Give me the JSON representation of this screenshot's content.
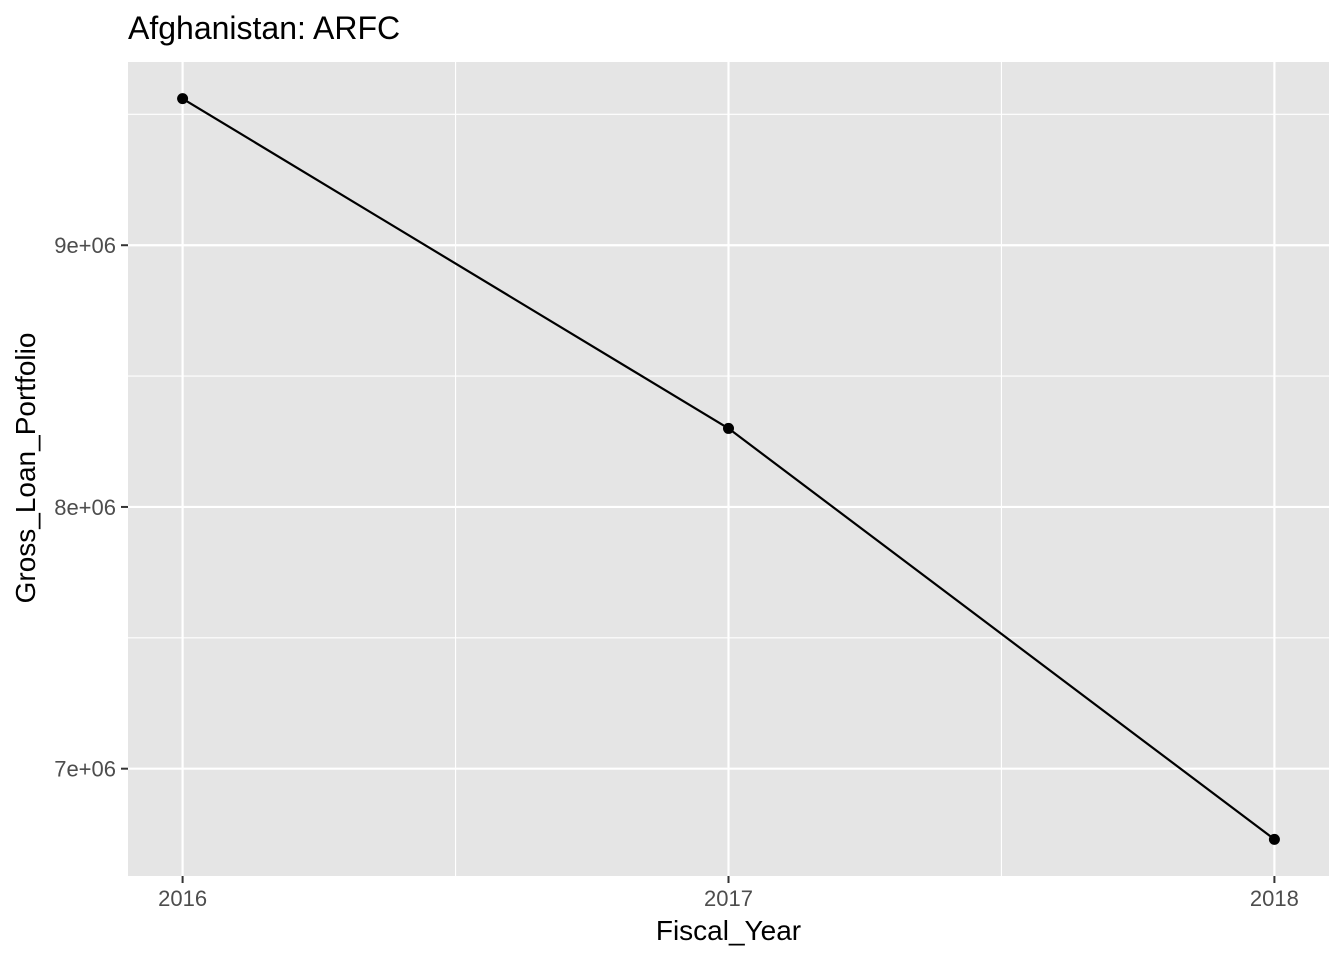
{
  "chart_data": {
    "type": "line",
    "title": "Afghanistan:  ARFC",
    "xlabel": "Fiscal_Year",
    "ylabel": "Gross_Loan_Portfolio",
    "x": [
      2016,
      2017,
      2018
    ],
    "x_tick_labels": [
      "2016",
      "2017",
      "2018"
    ],
    "y_tick_values": [
      7000000,
      8000000,
      9000000
    ],
    "y_tick_labels": [
      "7e+06",
      "8e+06",
      "9e+06"
    ],
    "series": [
      {
        "values": [
          9560000,
          8300000,
          6730000
        ]
      }
    ],
    "xlim": [
      2015.9,
      2018.1
    ],
    "ylim": [
      6590000,
      9700000
    ],
    "grid": true,
    "background_color": "#e5e5e5",
    "grid_color": "#ffffff",
    "line_color": "#000000",
    "point_color": "#000000"
  }
}
